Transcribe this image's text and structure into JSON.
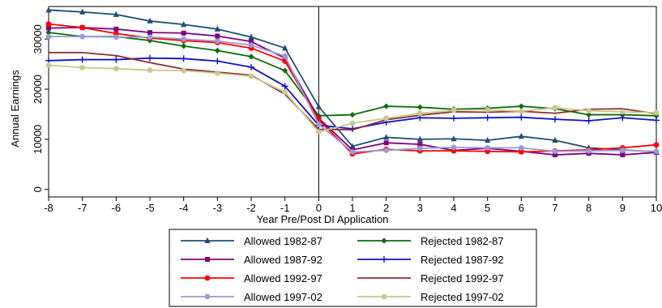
{
  "chart_data": {
    "type": "line",
    "xlabel": "Year Pre/Post DI Application",
    "ylabel": "Annual Earnings",
    "x": [
      -8,
      -7,
      -6,
      -5,
      -4,
      -3,
      -2,
      -1,
      0,
      1,
      2,
      3,
      4,
      5,
      6,
      7,
      8,
      9,
      10
    ],
    "x_ticks": [
      -8,
      -7,
      -6,
      -5,
      -4,
      -3,
      -2,
      -1,
      0,
      1,
      2,
      3,
      4,
      5,
      6,
      7,
      8,
      9,
      10
    ],
    "y_ticks": [
      0,
      10000,
      20000,
      30000
    ],
    "xlim": [
      -8,
      10
    ],
    "ylim": [
      -1500,
      36500
    ],
    "vertical_reference_line_x": 0,
    "legend_position": "bottom",
    "series": [
      {
        "name": "Allowed 1982-87",
        "color": "#1f4e79",
        "marker": "triangle",
        "values": [
          35800,
          35400,
          34900,
          33600,
          32900,
          32000,
          30400,
          28200,
          16500,
          8600,
          10400,
          10000,
          10100,
          9800,
          10600,
          9800,
          8300,
          7900,
          7500
        ]
      },
      {
        "name": "Rejected 1982-87",
        "color": "#0a6e0a",
        "marker": "diamond",
        "values": [
          31300,
          30500,
          30500,
          29700,
          28600,
          27700,
          26500,
          23700,
          14700,
          14900,
          16600,
          16400,
          16000,
          16200,
          16600,
          16100,
          14900,
          14900,
          14700
        ]
      },
      {
        "name": "Allowed 1987-92",
        "color": "#800080",
        "marker": "square",
        "values": [
          32200,
          32300,
          32000,
          31300,
          31200,
          30600,
          29500,
          26200,
          14200,
          7900,
          9300,
          9000,
          7800,
          8200,
          7600,
          6900,
          7200,
          6900,
          7400
        ]
      },
      {
        "name": "Rejected 1987-92",
        "color": "#1010c8",
        "marker": "plus",
        "values": [
          25700,
          25900,
          25900,
          26200,
          26100,
          25600,
          24400,
          20600,
          12800,
          12100,
          13400,
          14300,
          14200,
          14300,
          14400,
          14000,
          13700,
          14300,
          13800
        ]
      },
      {
        "name": "Allowed 1992-97",
        "color": "#ff0000",
        "marker": "circle",
        "values": [
          33000,
          32300,
          31100,
          30200,
          29700,
          29300,
          28200,
          25600,
          13900,
          7100,
          8000,
          7700,
          7700,
          7600,
          7500,
          7700,
          7900,
          8300,
          8900
        ]
      },
      {
        "name": "Rejected 1992-97",
        "color": "#8b2e2e",
        "marker": "none",
        "values": [
          27300,
          27300,
          26700,
          25300,
          24000,
          23400,
          22800,
          19000,
          12000,
          11900,
          13900,
          14800,
          15500,
          15400,
          15600,
          15200,
          16000,
          16100,
          15100
        ]
      },
      {
        "name": "Allowed 1997-02",
        "color": "#9a9ad8",
        "marker": "circle",
        "values": [
          30500,
          30500,
          30400,
          30400,
          30000,
          29600,
          28800,
          26600,
          13000,
          7500,
          7800,
          8200,
          8400,
          8300,
          8300,
          7600,
          7700,
          7800,
          7600
        ]
      },
      {
        "name": "Rejected 1997-02",
        "color": "#c8c88c",
        "marker": "circle",
        "values": [
          24800,
          24300,
          24100,
          23800,
          23700,
          23200,
          22600,
          19400,
          11500,
          13200,
          14200,
          15200,
          15800,
          15900,
          15600,
          16300,
          15700,
          15500,
          15300
        ]
      }
    ],
    "legend_order": [
      0,
      1,
      2,
      3,
      4,
      5,
      6,
      7
    ]
  }
}
